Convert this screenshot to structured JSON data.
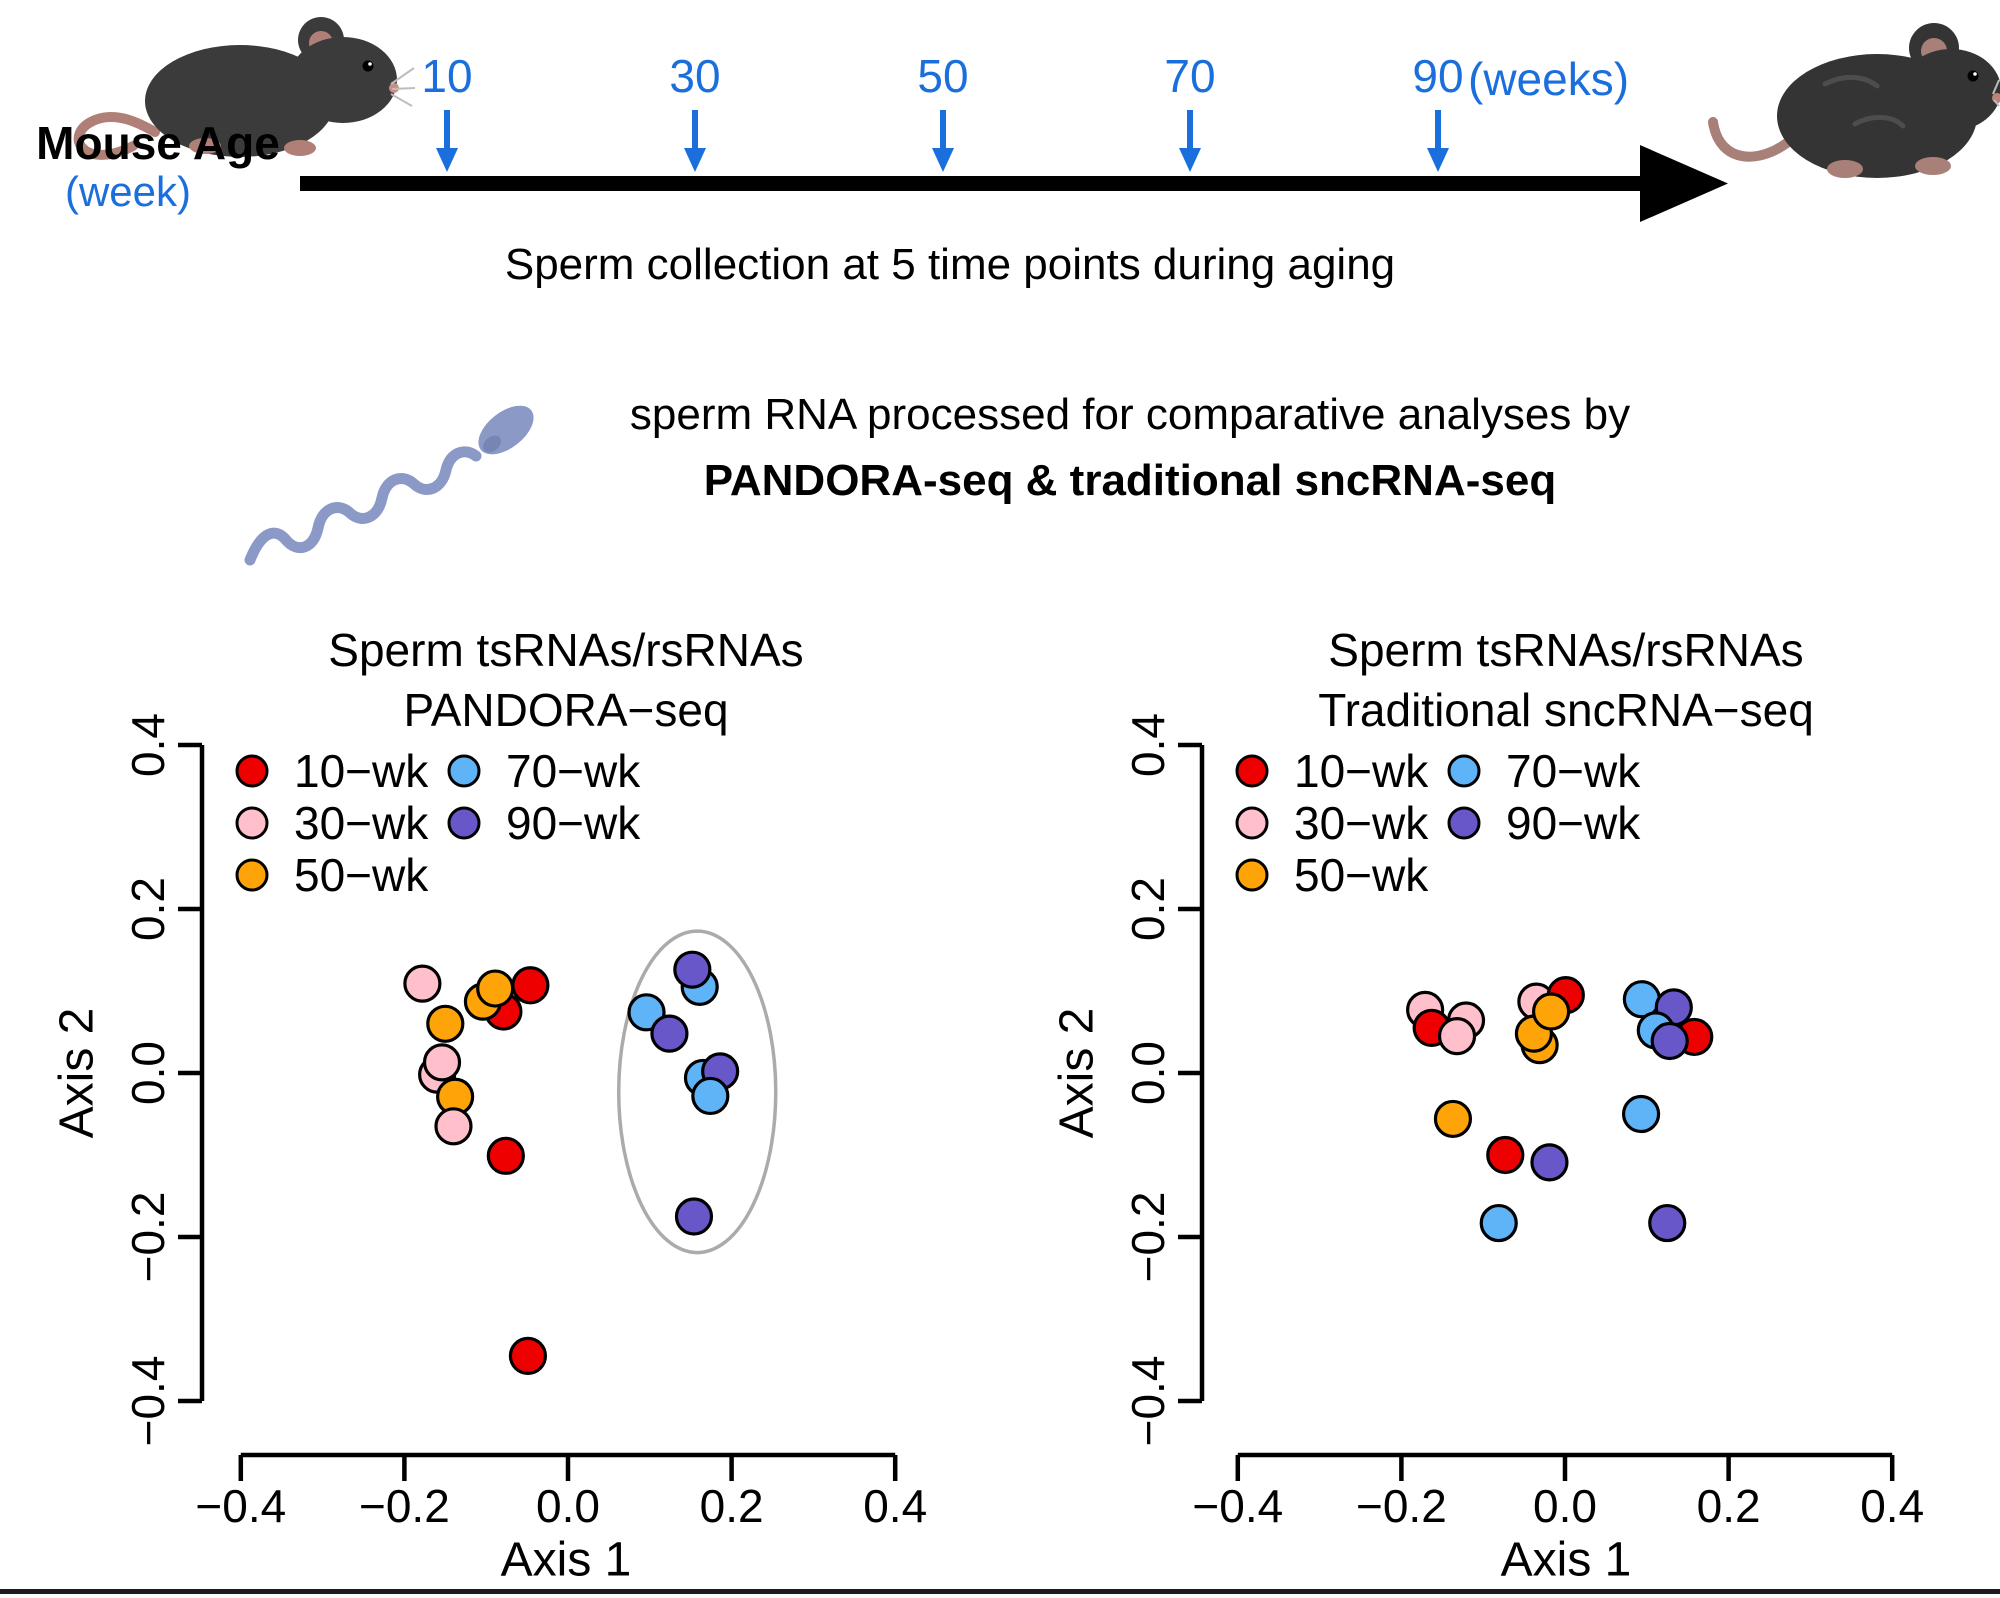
{
  "timeline": {
    "label": "Mouse Age",
    "sublabel": "(week)",
    "caption": "Sperm collection at 5 time points during aging",
    "tick_labels": [
      "10",
      "30",
      "50",
      "70",
      "90"
    ],
    "unit_label": "(weeks)",
    "accent_color": "#1B6FDC",
    "arrow_color": "#000000",
    "icons": [
      "young-mouse-icon",
      "aged-mouse-icon"
    ]
  },
  "processing": {
    "line1": "sperm RNA processed for comparative analyses by",
    "line2": "PANDORA-seq & traditional sncRNA-seq",
    "icons": [
      "sperm-icon"
    ],
    "sperm_color": "#8A99C5"
  },
  "chart_data": [
    {
      "type": "scatter",
      "title_line1": "Sperm tsRNAs/rsRNAs",
      "title_line2": "PANDORA−seq",
      "xlabel": "Axis 1",
      "ylabel": "Axis 2",
      "xlim": [
        -0.45,
        0.45
      ],
      "ylim": [
        -0.45,
        0.45
      ],
      "grid": false,
      "legend_position": "top-left",
      "xticks": {
        "values": [
          -0.4,
          -0.2,
          0,
          0.2,
          0.4
        ],
        "labels": [
          "−0.4",
          "−0.2",
          "0.0",
          "0.2",
          "0.4"
        ]
      },
      "yticks": {
        "values": [
          -0.4,
          -0.2,
          0,
          0.2,
          0.4
        ],
        "labels": [
          "−0.4",
          "−0.2",
          "0.0",
          "0.2",
          "0.4"
        ]
      },
      "legend": [
        {
          "label": "10−wk",
          "color": "#EE0000"
        },
        {
          "label": "30−wk",
          "color": "#FFC0CB"
        },
        {
          "label": "50−wk",
          "color": "#FFA408"
        },
        {
          "label": "70−wk",
          "color": "#5FB3F7"
        },
        {
          "label": "90−wk",
          "color": "#6757C9"
        }
      ],
      "points": [
        {
          "g": 0,
          "x": -0.079,
          "y": 0.075
        },
        {
          "g": 2,
          "x": -0.104,
          "y": 0.087
        },
        {
          "g": 2,
          "x": -0.089,
          "y": 0.103
        },
        {
          "g": 0,
          "x": -0.046,
          "y": 0.107
        },
        {
          "g": 1,
          "x": -0.178,
          "y": 0.109
        },
        {
          "g": 2,
          "x": -0.15,
          "y": 0.06
        },
        {
          "g": 1,
          "x": -0.16,
          "y": -0.002
        },
        {
          "g": 1,
          "x": -0.154,
          "y": 0.013
        },
        {
          "g": 2,
          "x": -0.138,
          "y": -0.029
        },
        {
          "g": 1,
          "x": -0.14,
          "y": -0.065
        },
        {
          "g": 0,
          "x": -0.076,
          "y": -0.101
        },
        {
          "g": 0,
          "x": -0.049,
          "y": -0.345
        },
        {
          "g": 3,
          "x": 0.161,
          "y": 0.105
        },
        {
          "g": 4,
          "x": 0.152,
          "y": 0.126
        },
        {
          "g": 3,
          "x": 0.096,
          "y": 0.074
        },
        {
          "g": 4,
          "x": 0.124,
          "y": 0.048
        },
        {
          "g": 3,
          "x": 0.165,
          "y": -0.006
        },
        {
          "g": 4,
          "x": 0.186,
          "y": 0.002
        },
        {
          "g": 3,
          "x": 0.174,
          "y": -0.028
        },
        {
          "g": 4,
          "x": 0.154,
          "y": -0.175
        }
      ],
      "ellipse": {
        "cx": 0.158,
        "cy": -0.023,
        "rx": 0.096,
        "ry": 0.196,
        "color": "#ABABAB"
      }
    },
    {
      "type": "scatter",
      "title_line1": "Sperm tsRNAs/rsRNAs",
      "title_line2": "Traditional sncRNA−seq",
      "xlabel": "Axis 1",
      "ylabel": "Axis 2",
      "xlim": [
        -0.45,
        0.45
      ],
      "ylim": [
        -0.45,
        0.45
      ],
      "grid": false,
      "legend_position": "top-left",
      "xticks": {
        "values": [
          -0.4,
          -0.2,
          0,
          0.2,
          0.4
        ],
        "labels": [
          "−0.4",
          "−0.2",
          "0.0",
          "0.2",
          "0.4"
        ]
      },
      "yticks": {
        "values": [
          -0.4,
          -0.2,
          0,
          0.2,
          0.4
        ],
        "labels": [
          "−0.4",
          "−0.2",
          "0.0",
          "0.2",
          "0.4"
        ]
      },
      "legend": [
        {
          "label": "10−wk",
          "color": "#EE0000"
        },
        {
          "label": "30−wk",
          "color": "#FFC0CB"
        },
        {
          "label": "50−wk",
          "color": "#FFA408"
        },
        {
          "label": "70−wk",
          "color": "#5FB3F7"
        },
        {
          "label": "90−wk",
          "color": "#6757C9"
        }
      ],
      "points": [
        {
          "g": 1,
          "x": -0.171,
          "y": 0.077
        },
        {
          "g": 1,
          "x": -0.121,
          "y": 0.064
        },
        {
          "g": 0,
          "x": -0.163,
          "y": 0.055
        },
        {
          "g": 1,
          "x": -0.132,
          "y": 0.045
        },
        {
          "g": 1,
          "x": -0.035,
          "y": 0.087
        },
        {
          "g": 0,
          "x": 0.001,
          "y": 0.095
        },
        {
          "g": 2,
          "x": -0.031,
          "y": 0.034
        },
        {
          "g": 2,
          "x": -0.038,
          "y": 0.048
        },
        {
          "g": 2,
          "x": -0.017,
          "y": 0.075
        },
        {
          "g": 3,
          "x": 0.094,
          "y": 0.09
        },
        {
          "g": 4,
          "x": 0.133,
          "y": 0.08
        },
        {
          "g": 3,
          "x": 0.111,
          "y": 0.052
        },
        {
          "g": 0,
          "x": 0.158,
          "y": 0.044
        },
        {
          "g": 4,
          "x": 0.128,
          "y": 0.039
        },
        {
          "g": 2,
          "x": -0.137,
          "y": -0.056
        },
        {
          "g": 3,
          "x": 0.093,
          "y": -0.05
        },
        {
          "g": 0,
          "x": -0.073,
          "y": -0.1
        },
        {
          "g": 4,
          "x": -0.019,
          "y": -0.109
        },
        {
          "g": 3,
          "x": -0.081,
          "y": -0.183
        },
        {
          "g": 4,
          "x": 0.125,
          "y": -0.183
        }
      ],
      "ellipse": null
    }
  ]
}
